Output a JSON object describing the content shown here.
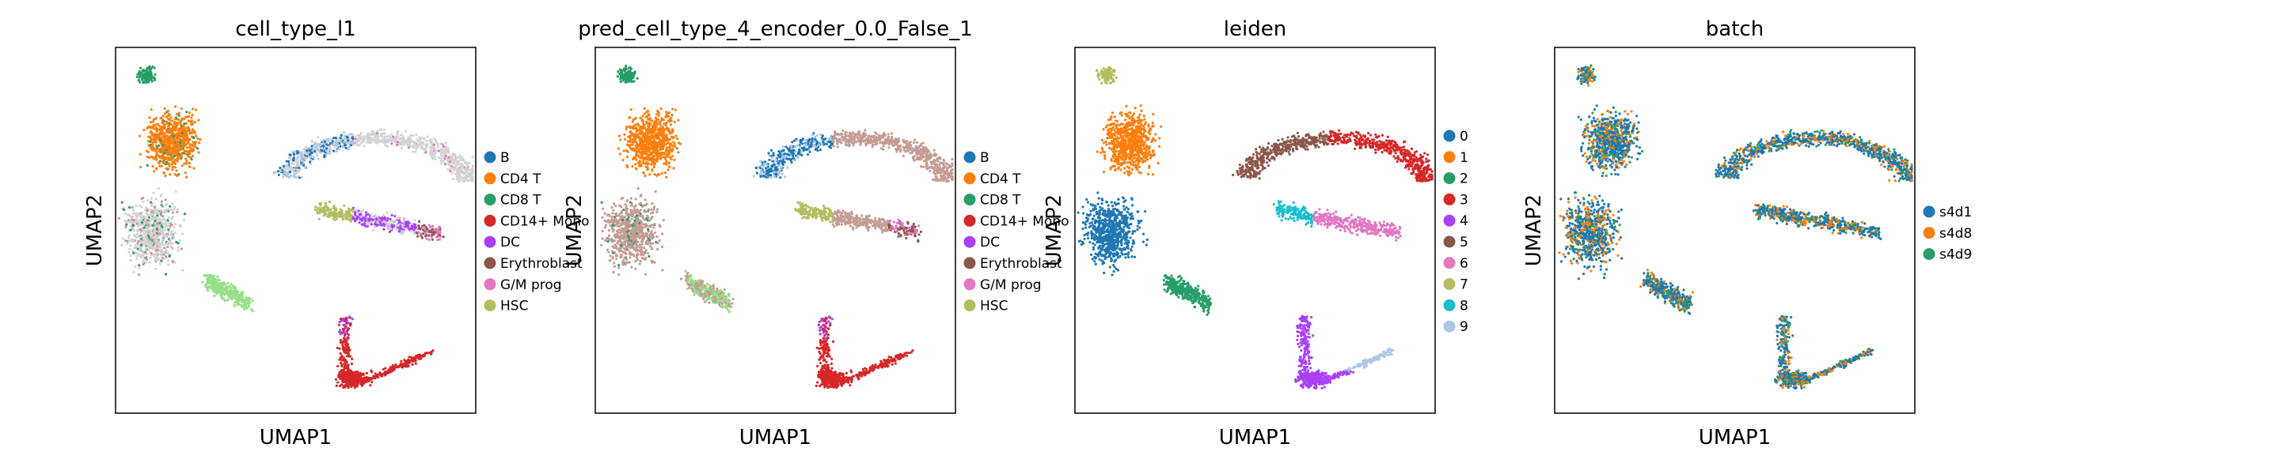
{
  "palette": {
    "tab20_like": [
      "#1f77b4",
      "#ff7f0e",
      "#279e68",
      "#d62728",
      "#aa40fc",
      "#8c564b",
      "#e377c2",
      "#b5bd61",
      "#17becf",
      "#aec7e8"
    ],
    "grey_unlabeled": "#d3d3d3",
    "pred_brown": "#c49c94"
  },
  "chart_data": [
    {
      "type": "scatter",
      "title": "cell_type_l1",
      "xlabel": "UMAP1",
      "ylabel": "UMAP2",
      "axis_ticks": false,
      "legend_placement": "right",
      "legend": [
        {
          "label": "B",
          "color": "#1f77b4"
        },
        {
          "label": "CD4 T",
          "color": "#ff7f0e"
        },
        {
          "label": "CD8 T",
          "color": "#279e68"
        },
        {
          "label": "CD14+ Mono",
          "color": "#d62728"
        },
        {
          "label": "DC",
          "color": "#aa40fc"
        },
        {
          "label": "Erythroblast",
          "color": "#8c564b"
        },
        {
          "label": "G/M prog",
          "color": "#e377c2"
        },
        {
          "label": "HSC",
          "color": "#b5bd61"
        }
      ]
    },
    {
      "type": "scatter",
      "title": "pred_cell_type_4_encoder_0.0_False_1",
      "xlabel": "UMAP1",
      "ylabel": "UMAP2",
      "axis_ticks": false,
      "legend_placement": "right",
      "legend": [
        {
          "label": "B",
          "color": "#1f77b4"
        },
        {
          "label": "CD4 T",
          "color": "#ff7f0e"
        },
        {
          "label": "CD8 T",
          "color": "#279e68"
        },
        {
          "label": "CD14+ Mono",
          "color": "#d62728"
        },
        {
          "label": "DC",
          "color": "#aa40fc"
        },
        {
          "label": "Erythroblast",
          "color": "#8c564b"
        },
        {
          "label": "G/M prog",
          "color": "#e377c2"
        },
        {
          "label": "HSC",
          "color": "#b5bd61"
        }
      ]
    },
    {
      "type": "scatter",
      "title": "leiden",
      "xlabel": "UMAP1",
      "ylabel": "UMAP2",
      "axis_ticks": false,
      "legend_placement": "right",
      "legend": [
        {
          "label": "0",
          "color": "#1f77b4"
        },
        {
          "label": "1",
          "color": "#ff7f0e"
        },
        {
          "label": "2",
          "color": "#279e68"
        },
        {
          "label": "3",
          "color": "#d62728"
        },
        {
          "label": "4",
          "color": "#aa40fc"
        },
        {
          "label": "5",
          "color": "#8c564b"
        },
        {
          "label": "6",
          "color": "#e377c2"
        },
        {
          "label": "7",
          "color": "#b5bd61"
        },
        {
          "label": "8",
          "color": "#17becf"
        },
        {
          "label": "9",
          "color": "#aec7e8"
        }
      ]
    },
    {
      "type": "scatter",
      "title": "batch",
      "xlabel": "UMAP1",
      "ylabel": "UMAP2",
      "axis_ticks": false,
      "legend_placement": "right",
      "legend": [
        {
          "label": "s4d1",
          "color": "#1f77b4"
        },
        {
          "label": "s4d8",
          "color": "#ff7f0e"
        },
        {
          "label": "s4d9",
          "color": "#279e68"
        }
      ]
    }
  ]
}
